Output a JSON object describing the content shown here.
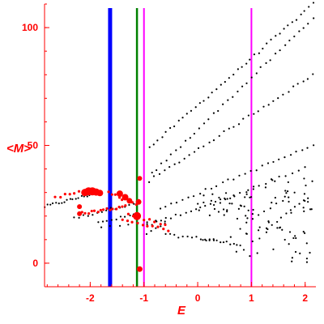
{
  "chart_data": {
    "type": "scatter",
    "title": "",
    "xlabel": "E",
    "ylabel": "<M>",
    "xlim": [
      -2.85,
      2.2
    ],
    "ylim": [
      -10,
      110
    ],
    "x_ticks": [
      {
        "value": -2,
        "label": "-2"
      },
      {
        "value": -1,
        "label": "-1"
      },
      {
        "value": 0,
        "label": "0"
      },
      {
        "value": 1,
        "label": "1"
      },
      {
        "value": 2,
        "label": "2"
      }
    ],
    "y_ticks": [
      {
        "value": 0,
        "label": "0"
      },
      {
        "value": 50,
        "label": "50"
      },
      {
        "value": 100,
        "label": "100"
      }
    ],
    "grid": false,
    "colors": {
      "axis": "#ff0000",
      "black_points": "#000000",
      "red_points": "#ff0000",
      "blue_line": "#0000ff",
      "green_line": "#008000",
      "magenta_line": "#ff00ff"
    },
    "vertical_lines": [
      {
        "x": -1.63,
        "color": "#0000ff",
        "width": "thick"
      },
      {
        "x": -1.13,
        "color": "#008000",
        "width": "medium"
      },
      {
        "x": -1.0,
        "color": "#ff00ff",
        "width": "thin"
      },
      {
        "x": 1.0,
        "color": "#ff00ff",
        "width": "thin"
      }
    ],
    "series": [
      {
        "color": "#000000",
        "marker": "dot",
        "segments": [
          {
            "from": [
              -2.85,
              24
            ],
            "to": [
              -1.85,
              30
            ],
            "n": 20
          },
          {
            "from": [
              -2.3,
              19
            ],
            "to": [
              -1.1,
              26
            ],
            "n": 15
          },
          {
            "from": [
              -1.85,
              17
            ],
            "to": [
              -1.1,
              21
            ],
            "n": 10
          },
          {
            "from": [
              -1.8,
              15
            ],
            "to": [
              -0.6,
              18
            ],
            "n": 8
          },
          {
            "from": [
              -0.95,
              12
            ],
            "to": [
              -0.6,
              17
            ],
            "n": 5
          },
          {
            "from": [
              -0.6,
              12
            ],
            "to": [
              0.3,
              10
            ],
            "n": 12
          },
          {
            "from": [
              0.1,
              10
            ],
            "to": [
              0.8,
              8
            ],
            "n": 12
          },
          {
            "from": [
              -0.9,
              49
            ],
            "to": [
              2.15,
              110
            ],
            "n": 40
          },
          {
            "from": [
              -0.85,
              38
            ],
            "to": [
              2.15,
              104
            ],
            "n": 35
          },
          {
            "from": [
              -0.9,
              35
            ],
            "to": [
              2.15,
              80
            ],
            "n": 34
          },
          {
            "from": [
              -0.7,
              23
            ],
            "to": [
              2.15,
              50
            ],
            "n": 28
          },
          {
            "from": [
              -0.95,
              16
            ],
            "to": [
              0.6,
              28
            ],
            "n": 18
          },
          {
            "from": [
              0.3,
              25
            ],
            "to": [
              2.0,
              41
            ],
            "n": 15
          },
          {
            "from": [
              0.8,
              15
            ],
            "to": [
              1.8,
              30
            ],
            "n": 10
          },
          {
            "from": [
              1.3,
              15
            ],
            "to": [
              1.9,
              25
            ],
            "n": 8
          }
        ],
        "scatter_box": {
          "x": [
            0.6,
            2.15
          ],
          "y": [
            0,
            36
          ],
          "n": 70
        },
        "scatter_box2": {
          "x": [
            0.0,
            1.0
          ],
          "y": [
            20,
            31
          ],
          "n": 25
        }
      },
      {
        "color": "#ff0000",
        "marker": "dot",
        "segments": [
          {
            "from": [
              -2.65,
              28
            ],
            "to": [
              -2.2,
              30
            ],
            "n": 6
          },
          {
            "from": [
              -2.2,
              21
            ],
            "to": [
              -1.35,
              24
            ],
            "n": 16
          },
          {
            "from": [
              -1.4,
              19
            ],
            "to": [
              -0.55,
              14
            ],
            "n": 10
          },
          {
            "from": [
              -1.65,
              30
            ],
            "to": [
              -1.15,
              25
            ],
            "n": 9
          },
          {
            "from": [
              -1.3,
              21
            ],
            "to": [
              -0.6,
              16
            ],
            "n": 8
          }
        ],
        "big_points": [
          {
            "x": -2.1,
            "y": 30,
            "r": 4.5
          },
          {
            "x": -2.03,
            "y": 30.5,
            "r": 5
          },
          {
            "x": -1.96,
            "y": 30.5,
            "r": 5
          },
          {
            "x": -1.89,
            "y": 30.2,
            "r": 4.5
          },
          {
            "x": -1.82,
            "y": 29.8,
            "r": 4
          },
          {
            "x": -1.45,
            "y": 29.5,
            "r": 4
          },
          {
            "x": -1.35,
            "y": 28,
            "r": 4
          },
          {
            "x": -1.27,
            "y": 26.5,
            "r": 3.5
          },
          {
            "x": -1.13,
            "y": 20,
            "r": 5
          },
          {
            "x": -1.1,
            "y": 26,
            "r": 3.5
          },
          {
            "x": -1.08,
            "y": 36,
            "r": 3
          },
          {
            "x": -1.08,
            "y": -2.5,
            "r": 3.5
          },
          {
            "x": -2.2,
            "y": 24,
            "r": 3
          },
          {
            "x": -2.2,
            "y": 21,
            "r": 3
          }
        ]
      }
    ]
  }
}
